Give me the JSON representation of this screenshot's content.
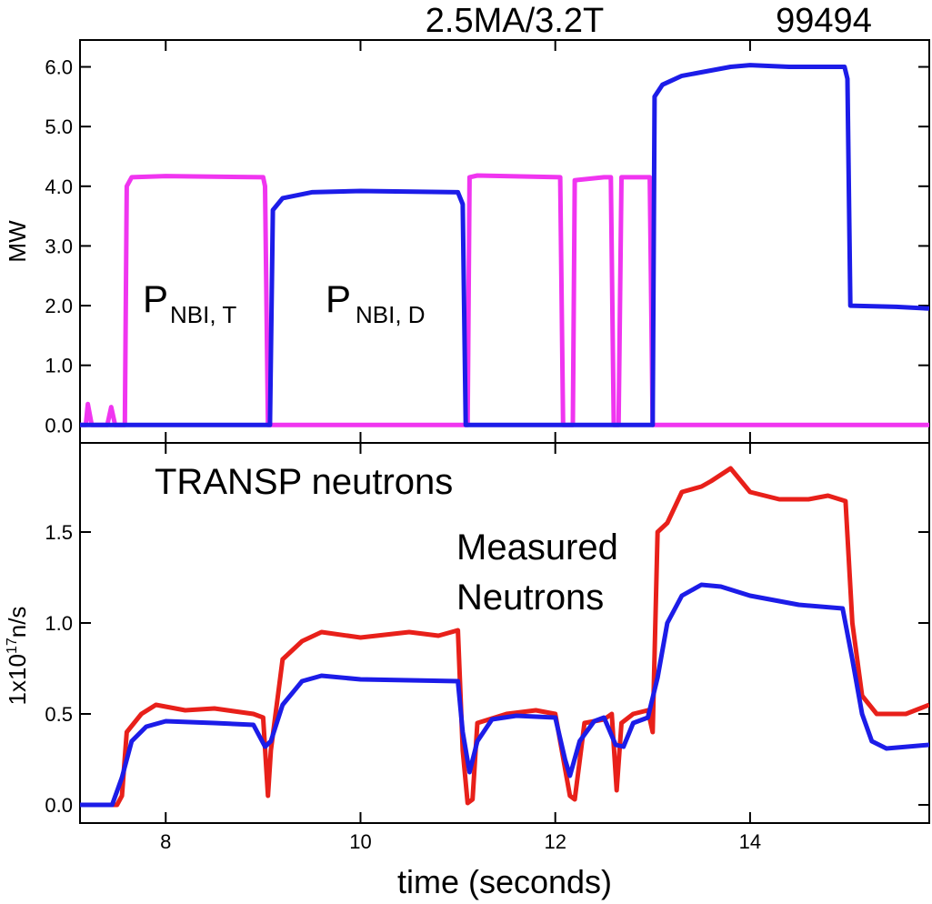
{
  "chart_data": [
    {
      "type": "line",
      "titles": [
        "2.5MA/3.2T",
        "99494"
      ],
      "ylabel": "MW",
      "xlim": [
        7.12,
        15.84
      ],
      "ylim": [
        -0.3,
        6.45
      ],
      "yticks": [
        {
          "value": 0,
          "label": "0.0"
        },
        {
          "value": 1,
          "label": "1.0"
        },
        {
          "value": 2,
          "label": "2.0"
        },
        {
          "value": 3,
          "label": "3.0"
        },
        {
          "value": 4,
          "label": "4.0"
        },
        {
          "value": 5,
          "label": "5.0"
        },
        {
          "value": 6,
          "label": "6.0"
        }
      ],
      "series": [
        {
          "name": "P",
          "name_sub": "NBI, T",
          "color": "#f035f0",
          "x": [
            7.12,
            7.18,
            7.2,
            7.24,
            7.4,
            7.44,
            7.48,
            7.58,
            7.6,
            7.65,
            8,
            9.0,
            9.02,
            9.05,
            11.1,
            11.12,
            11.2,
            12.05,
            12.08,
            12.18,
            12.2,
            12.5,
            12.57,
            12.6,
            12.65,
            12.68,
            12.97,
            13.0,
            15.84
          ],
          "values": [
            0,
            0,
            0.35,
            0,
            0,
            0.3,
            0,
            0,
            4.0,
            4.15,
            4.17,
            4.15,
            4.0,
            0,
            0,
            4.15,
            4.18,
            4.15,
            0,
            0,
            4.1,
            4.15,
            4.15,
            0,
            0,
            4.15,
            4.15,
            0,
            0
          ]
        },
        {
          "name": "P",
          "name_sub": "NBI, D",
          "color": "#1c1ce8",
          "x": [
            7.12,
            9.07,
            9.1,
            9.2,
            9.5,
            10,
            11.0,
            11.05,
            11.08,
            13.0,
            13.02,
            13.1,
            13.3,
            13.8,
            14,
            14.4,
            14.97,
            15.0,
            15.03,
            15.5,
            15.84
          ],
          "values": [
            0,
            0,
            3.6,
            3.8,
            3.9,
            3.92,
            3.9,
            3.7,
            0,
            0,
            5.5,
            5.7,
            5.85,
            6.0,
            6.03,
            6.0,
            6.0,
            5.8,
            2.0,
            1.98,
            1.95
          ]
        }
      ]
    },
    {
      "type": "line",
      "xlabel": "time (seconds)",
      "ylabel": [
        "1x10",
        "17",
        "n/s"
      ],
      "xlim": [
        7.12,
        15.84
      ],
      "ylim": [
        -0.1,
        1.99
      ],
      "xticks": [
        8,
        10,
        12,
        14
      ],
      "yticks": [
        {
          "value": 0,
          "label": "0.0"
        },
        {
          "value": 0.5,
          "label": "0.5"
        },
        {
          "value": 1,
          "label": "1.0"
        },
        {
          "value": 1.5,
          "label": "1.5"
        }
      ],
      "series": [
        {
          "name": [
            "TRANSP neutrons"
          ],
          "color": "#e8201a",
          "x": [
            7.12,
            7.5,
            7.55,
            7.6,
            7.75,
            7.9,
            8.2,
            8.5,
            8.9,
            9.0,
            9.05,
            9.08,
            9.2,
            9.4,
            9.6,
            10,
            10.5,
            10.8,
            11.0,
            11.05,
            11.1,
            11.15,
            11.2,
            11.5,
            11.8,
            12.0,
            12.15,
            12.2,
            12.3,
            12.5,
            12.58,
            12.63,
            12.68,
            12.8,
            12.95,
            13.0,
            13.05,
            13.15,
            13.3,
            13.5,
            13.6,
            13.8,
            14,
            14.3,
            14.6,
            14.8,
            14.98,
            15.05,
            15.15,
            15.3,
            15.6,
            15.84
          ],
          "values": [
            0,
            0,
            0.05,
            0.4,
            0.5,
            0.55,
            0.52,
            0.53,
            0.5,
            0.48,
            0.05,
            0.3,
            0.8,
            0.9,
            0.95,
            0.92,
            0.95,
            0.93,
            0.96,
            0.3,
            0.01,
            0.03,
            0.45,
            0.5,
            0.52,
            0.5,
            0.05,
            0.03,
            0.45,
            0.47,
            0.5,
            0.08,
            0.45,
            0.5,
            0.52,
            0.4,
            1.5,
            1.55,
            1.72,
            1.75,
            1.78,
            1.85,
            1.72,
            1.68,
            1.68,
            1.7,
            1.67,
            1.0,
            0.6,
            0.5,
            0.5,
            0.55
          ]
        },
        {
          "name": [
            "Measured",
            "Neutrons"
          ],
          "color": "#1c1ce8",
          "x": [
            7.12,
            7.45,
            7.55,
            7.65,
            7.8,
            8,
            8.5,
            8.9,
            9.02,
            9.08,
            9.2,
            9.4,
            9.6,
            10,
            11.0,
            11.05,
            11.12,
            11.2,
            11.35,
            11.6,
            12.0,
            12.1,
            12.15,
            12.25,
            12.4,
            12.5,
            12.62,
            12.7,
            12.8,
            12.95,
            13.05,
            13.15,
            13.3,
            13.5,
            13.7,
            14,
            14.5,
            14.95,
            15.05,
            15.15,
            15.25,
            15.4,
            15.84
          ],
          "values": [
            0,
            0,
            0.15,
            0.35,
            0.43,
            0.46,
            0.45,
            0.44,
            0.32,
            0.35,
            0.55,
            0.68,
            0.71,
            0.69,
            0.68,
            0.4,
            0.18,
            0.35,
            0.47,
            0.49,
            0.48,
            0.25,
            0.16,
            0.35,
            0.46,
            0.48,
            0.33,
            0.32,
            0.45,
            0.48,
            0.7,
            1.0,
            1.15,
            1.21,
            1.2,
            1.15,
            1.1,
            1.08,
            0.8,
            0.5,
            0.35,
            0.31,
            0.33
          ]
        }
      ]
    }
  ]
}
